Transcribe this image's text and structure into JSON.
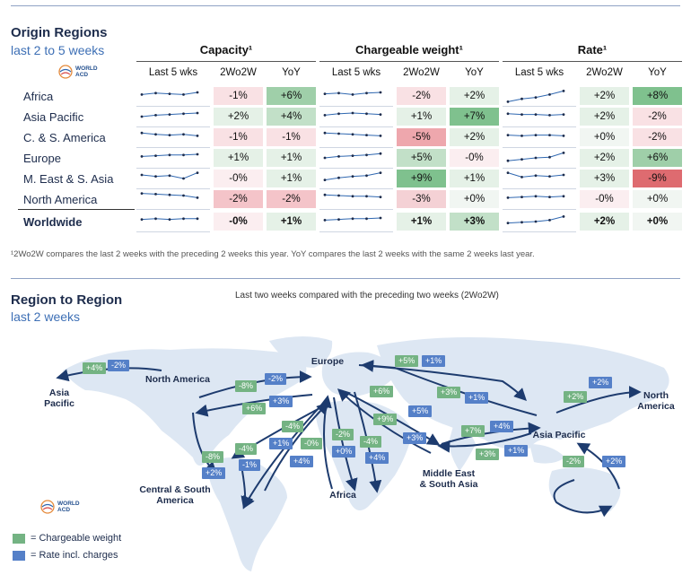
{
  "origin": {
    "title": "Origin Regions",
    "subtitle": "last 2 to 5 weeks",
    "logo_text": "WORLD ACD",
    "groups": [
      {
        "title": "Capacity¹",
        "cols": [
          "Last 5 wks",
          "2Wo2W",
          "YoY"
        ]
      },
      {
        "title": "Chargeable weight¹",
        "cols": [
          "Last 5 wks",
          "2Wo2W",
          "YoY"
        ]
      },
      {
        "title": "Rate¹",
        "cols": [
          "Last 5 wks",
          "2Wo2W",
          "YoY"
        ]
      }
    ],
    "rows": [
      {
        "region": "Africa",
        "vals": [
          "-1%",
          "+6%",
          "-2%",
          "+2%",
          "+2%",
          "+8%"
        ],
        "spark": [
          [
            50,
            52,
            51,
            50,
            53
          ],
          [
            51,
            52,
            50,
            52,
            53
          ],
          [
            40,
            44,
            46,
            50,
            55
          ]
        ]
      },
      {
        "region": "Asia Pacific",
        "vals": [
          "+2%",
          "+4%",
          "+1%",
          "+7%",
          "+2%",
          "-2%"
        ],
        "spark": [
          [
            48,
            50,
            51,
            52,
            53
          ],
          [
            50,
            52,
            53,
            52,
            51
          ],
          [
            52,
            51,
            51,
            50,
            51
          ]
        ]
      },
      {
        "region": "C. & S. America",
        "vals": [
          "-1%",
          "-1%",
          "-5%",
          "+2%",
          "+0%",
          "-2%"
        ],
        "spark": [
          [
            54,
            52,
            51,
            52,
            50
          ],
          [
            54,
            53,
            52,
            51,
            50
          ],
          [
            51,
            50,
            51,
            51,
            50
          ]
        ]
      },
      {
        "region": "Europe",
        "vals": [
          "+1%",
          "+1%",
          "+5%",
          "-0%",
          "+2%",
          "+6%"
        ],
        "spark": [
          [
            50,
            51,
            52,
            52,
            53
          ],
          [
            48,
            50,
            51,
            52,
            54
          ],
          [
            44,
            46,
            48,
            49,
            55
          ]
        ]
      },
      {
        "region": "M. East & S. Asia",
        "vals": [
          "-0%",
          "+1%",
          "+9%",
          "+1%",
          "+3%",
          "-9%"
        ],
        "spark": [
          [
            53,
            51,
            52,
            48,
            56
          ],
          [
            46,
            49,
            51,
            52,
            56
          ],
          [
            56,
            50,
            52,
            51,
            53
          ]
        ]
      },
      {
        "region": "North America",
        "vals": [
          "-2%",
          "-2%",
          "-3%",
          "+0%",
          "-0%",
          "+0%"
        ],
        "spark": [
          [
            56,
            55,
            54,
            53,
            50
          ],
          [
            54,
            53,
            52,
            52,
            51
          ],
          [
            50,
            51,
            52,
            51,
            52
          ]
        ]
      },
      {
        "region": "Worldwide",
        "vals": [
          "-0%",
          "+1%",
          "+1%",
          "+3%",
          "+2%",
          "+0%"
        ],
        "spark": [
          [
            51,
            52,
            51,
            52,
            52
          ],
          [
            50,
            51,
            52,
            52,
            53
          ],
          [
            46,
            47,
            48,
            50,
            55
          ]
        ],
        "bold": true
      }
    ],
    "cell_colors": [
      [
        "#f9e1e4",
        "#9fcfa9",
        "#f9e1e4",
        "#e5f1e7",
        "#e5f1e7",
        "#7fc18e"
      ],
      [
        "#e5f1e7",
        "#c2e0c8",
        "#e5f1e7",
        "#7fc18e",
        "#e5f1e7",
        "#f9e1e4"
      ],
      [
        "#f9e1e4",
        "#f9e1e4",
        "#eea7ad",
        "#e5f1e7",
        "#f1f6f2",
        "#f9e1e4"
      ],
      [
        "#e5f1e7",
        "#e5f1e7",
        "#c2e0c8",
        "#fbeef0",
        "#e5f1e7",
        "#9fcfa9"
      ],
      [
        "#fbeef0",
        "#e5f1e7",
        "#7fc18e",
        "#e5f1e7",
        "#e5f1e7",
        "#de6b70"
      ],
      [
        "#f4c4c9",
        "#f4c4c9",
        "#f4d1d5",
        "#f1f6f2",
        "#fbeef0",
        "#f1f6f2"
      ],
      [
        "#fbeef0",
        "#e5f1e7",
        "#e5f1e7",
        "#c2e0c8",
        "#e5f1e7",
        "#f1f6f2"
      ]
    ],
    "footnote": "¹2Wo2W compares the last 2 weeks with the preceding 2 weeks this year. YoY compares the last 2 weeks with the same 2 weeks last year."
  },
  "r2r": {
    "title": "Region to Region",
    "subtitle": "last 2 weeks",
    "caption": "Last two weeks compared with the preceding two weeks (2Wo2W)",
    "labels": {
      "asia_pacific_left": "Asia\nPacific",
      "north_america_top": "North America",
      "europe": "Europe",
      "north_america_right": "North\nAmerica",
      "asia_pacific_right": "Asia Pacific",
      "central_south_america": "Central & South\nAmerica",
      "africa": "Africa",
      "middle_east": "Middle East\n& South Asia"
    },
    "badges": [
      {
        "t": "+4%",
        "c": "g"
      },
      {
        "t": "-2%",
        "c": "b"
      },
      {
        "t": "-8%",
        "c": "g"
      },
      {
        "t": "-2%",
        "c": "b"
      },
      {
        "t": "+3%",
        "c": "b"
      },
      {
        "t": "+6%",
        "c": "g"
      },
      {
        "t": "+5%",
        "c": "g"
      },
      {
        "t": "+1%",
        "c": "b"
      },
      {
        "t": "+6%",
        "c": "g"
      },
      {
        "t": "+3%",
        "c": "g"
      },
      {
        "t": "+1%",
        "c": "b"
      },
      {
        "t": "+2%",
        "c": "b"
      },
      {
        "t": "+2%",
        "c": "g"
      },
      {
        "t": "+9%",
        "c": "g"
      },
      {
        "t": "+5%",
        "c": "b"
      },
      {
        "t": "+3%",
        "c": "b"
      },
      {
        "t": "+7%",
        "c": "g"
      },
      {
        "t": "+4%",
        "c": "b"
      },
      {
        "t": "+3%",
        "c": "g"
      },
      {
        "t": "+1%",
        "c": "b"
      },
      {
        "t": "-4%",
        "c": "g"
      },
      {
        "t": "+1%",
        "c": "b"
      },
      {
        "t": "-0%",
        "c": "g"
      },
      {
        "t": "+4%",
        "c": "b"
      },
      {
        "t": "-2%",
        "c": "g"
      },
      {
        "t": "+0%",
        "c": "b"
      },
      {
        "t": "-4%",
        "c": "g"
      },
      {
        "t": "+4%",
        "c": "b"
      },
      {
        "t": "-4%",
        "c": "g"
      },
      {
        "t": "-1%",
        "c": "b"
      },
      {
        "t": "-8%",
        "c": "g"
      },
      {
        "t": "+2%",
        "c": "b"
      },
      {
        "t": "-2%",
        "c": "g"
      },
      {
        "t": "+2%",
        "c": "b"
      }
    ],
    "legend": [
      {
        "text": "= Chargeable weight",
        "color": "#74b383"
      },
      {
        "text": "= Rate incl. charges",
        "color": "#5580c8"
      }
    ]
  }
}
